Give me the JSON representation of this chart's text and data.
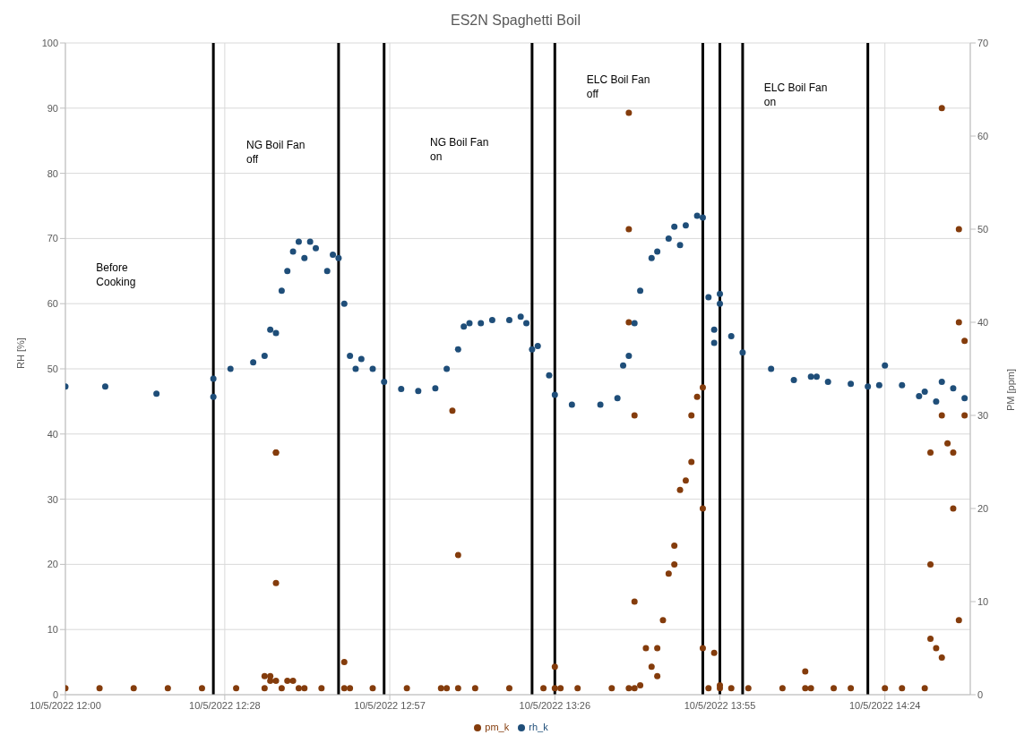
{
  "chart_data": {
    "type": "scatter",
    "title": "ES2N Spaghetti Boil",
    "ylabel": "RH [%]",
    "y2label": "PM [ppm]",
    "xlim": [
      "2022-10-05T12:00",
      "2022-10-05T14:39"
    ],
    "xticks": [
      {
        "value": "2022-10-05T12:00",
        "label": "10/5/2022 12:00"
      },
      {
        "value": "2022-10-05T12:28",
        "label": "10/5/2022 12:28"
      },
      {
        "value": "2022-10-05T12:57",
        "label": "10/5/2022 12:57"
      },
      {
        "value": "2022-10-05T13:26",
        "label": "10/5/2022 13:26"
      },
      {
        "value": "2022-10-05T13:55",
        "label": "10/5/2022 13:55"
      },
      {
        "value": "2022-10-05T14:24",
        "label": "10/5/2022 14:24"
      }
    ],
    "ylim": [
      0,
      100
    ],
    "yticks": [
      0,
      10,
      20,
      30,
      40,
      50,
      60,
      70,
      80,
      90,
      100
    ],
    "y2lim": [
      0,
      70
    ],
    "y2ticks": [
      0,
      10,
      20,
      30,
      40,
      50,
      60,
      70
    ],
    "grid": true,
    "legend": "bottom",
    "marker": "circle",
    "series": [
      {
        "name": "pm_k",
        "color": "#843c0c",
        "axis": "y2",
        "x": [
          "2022-10-05T12:00",
          "2022-10-05T12:06",
          "2022-10-05T12:12",
          "2022-10-05T12:18",
          "2022-10-05T12:24",
          "2022-10-05T12:30",
          "2022-10-05T12:35",
          "2022-10-05T12:35",
          "2022-10-05T12:36",
          "2022-10-05T12:36",
          "2022-10-05T12:37",
          "2022-10-05T12:37",
          "2022-10-05T12:37",
          "2022-10-05T12:37",
          "2022-10-05T12:38",
          "2022-10-05T12:39",
          "2022-10-05T12:40",
          "2022-10-05T12:41",
          "2022-10-05T12:42",
          "2022-10-05T12:45",
          "2022-10-05T12:49",
          "2022-10-05T12:49",
          "2022-10-05T12:50",
          "2022-10-05T12:54",
          "2022-10-05T13:00",
          "2022-10-05T13:06",
          "2022-10-05T13:07",
          "2022-10-05T13:08",
          "2022-10-05T13:09",
          "2022-10-05T13:09",
          "2022-10-05T13:12",
          "2022-10-05T13:18",
          "2022-10-05T13:24",
          "2022-10-05T13:26",
          "2022-10-05T13:26",
          "2022-10-05T13:27",
          "2022-10-05T13:30",
          "2022-10-05T13:36",
          "2022-10-05T13:39",
          "2022-10-05T13:39",
          "2022-10-05T13:39",
          "2022-10-05T13:39",
          "2022-10-05T13:40",
          "2022-10-05T13:40",
          "2022-10-05T13:40",
          "2022-10-05T13:41",
          "2022-10-05T13:42",
          "2022-10-05T13:43",
          "2022-10-05T13:44",
          "2022-10-05T13:44",
          "2022-10-05T13:45",
          "2022-10-05T13:46",
          "2022-10-05T13:47",
          "2022-10-05T13:47",
          "2022-10-05T13:48",
          "2022-10-05T13:49",
          "2022-10-05T13:50",
          "2022-10-05T13:50",
          "2022-10-05T13:51",
          "2022-10-05T13:52",
          "2022-10-05T13:52",
          "2022-10-05T13:52",
          "2022-10-05T13:53",
          "2022-10-05T13:54",
          "2022-10-05T13:55",
          "2022-10-05T13:55",
          "2022-10-05T13:57",
          "2022-10-05T14:00",
          "2022-10-05T14:06",
          "2022-10-05T14:10",
          "2022-10-05T14:10",
          "2022-10-05T14:11",
          "2022-10-05T14:15",
          "2022-10-05T14:18",
          "2022-10-05T14:24",
          "2022-10-05T14:27",
          "2022-10-05T14:31",
          "2022-10-05T14:32",
          "2022-10-05T14:32",
          "2022-10-05T14:32",
          "2022-10-05T14:33",
          "2022-10-05T14:34",
          "2022-10-05T14:34",
          "2022-10-05T14:34",
          "2022-10-05T14:35",
          "2022-10-05T14:36",
          "2022-10-05T14:36",
          "2022-10-05T14:37",
          "2022-10-05T14:37",
          "2022-10-05T14:37",
          "2022-10-05T14:38",
          "2022-10-05T14:38"
        ],
        "values": [
          0.7,
          0.7,
          0.7,
          0.7,
          0.7,
          0.7,
          0.7,
          2,
          2,
          1.5,
          26,
          26,
          12,
          1.5,
          0.7,
          1.5,
          1.5,
          0.7,
          0.7,
          0.7,
          0.7,
          3.5,
          0.7,
          0.7,
          0.7,
          0.7,
          0.7,
          30.5,
          15,
          0.7,
          0.7,
          0.7,
          0.7,
          0.7,
          3,
          0.7,
          0.7,
          0.7,
          0.7,
          40,
          62.5,
          50,
          30,
          10,
          0.7,
          1,
          5,
          3,
          2,
          5,
          8,
          13,
          16,
          14,
          22,
          23,
          25,
          30,
          32,
          33,
          20,
          5,
          0.7,
          4.5,
          1,
          0.7,
          0.7,
          0.7,
          0.7,
          0.7,
          2.5,
          0.7,
          0.7,
          0.7,
          0.7,
          0.7,
          0.7,
          6,
          26,
          14,
          5,
          4,
          63,
          30,
          27,
          20,
          26,
          50,
          40,
          8,
          30,
          38
        ]
      },
      {
        "name": "rh_k",
        "color": "#1f4e79",
        "x": [
          "2022-10-05T12:00",
          "2022-10-05T12:07",
          "2022-10-05T12:16",
          "2022-10-05T12:26",
          "2022-10-05T12:26",
          "2022-10-05T12:29",
          "2022-10-05T12:33",
          "2022-10-05T12:35",
          "2022-10-05T12:36",
          "2022-10-05T12:37",
          "2022-10-05T12:38",
          "2022-10-05T12:39",
          "2022-10-05T12:40",
          "2022-10-05T12:41",
          "2022-10-05T12:42",
          "2022-10-05T12:43",
          "2022-10-05T12:44",
          "2022-10-05T12:46",
          "2022-10-05T12:47",
          "2022-10-05T12:48",
          "2022-10-05T12:49",
          "2022-10-05T12:50",
          "2022-10-05T12:51",
          "2022-10-05T12:52",
          "2022-10-05T12:54",
          "2022-10-05T12:56",
          "2022-10-05T12:59",
          "2022-10-05T13:02",
          "2022-10-05T13:05",
          "2022-10-05T13:07",
          "2022-10-05T13:09",
          "2022-10-05T13:10",
          "2022-10-05T13:11",
          "2022-10-05T13:13",
          "2022-10-05T13:15",
          "2022-10-05T13:18",
          "2022-10-05T13:20",
          "2022-10-05T13:21",
          "2022-10-05T13:22",
          "2022-10-05T13:23",
          "2022-10-05T13:25",
          "2022-10-05T13:26",
          "2022-10-05T13:29",
          "2022-10-05T13:34",
          "2022-10-05T13:37",
          "2022-10-05T13:38",
          "2022-10-05T13:39",
          "2022-10-05T13:40",
          "2022-10-05T13:41",
          "2022-10-05T13:43",
          "2022-10-05T13:44",
          "2022-10-05T13:46",
          "2022-10-05T13:47",
          "2022-10-05T13:48",
          "2022-10-05T13:49",
          "2022-10-05T13:51",
          "2022-10-05T13:52",
          "2022-10-05T13:53",
          "2022-10-05T13:54",
          "2022-10-05T13:54",
          "2022-10-05T13:55",
          "2022-10-05T13:55",
          "2022-10-05T13:57",
          "2022-10-05T13:59",
          "2022-10-05T14:04",
          "2022-10-05T14:08",
          "2022-10-05T14:11",
          "2022-10-05T14:12",
          "2022-10-05T14:14",
          "2022-10-05T14:18",
          "2022-10-05T14:21",
          "2022-10-05T14:23",
          "2022-10-05T14:24",
          "2022-10-05T14:27",
          "2022-10-05T14:30",
          "2022-10-05T14:31",
          "2022-10-05T14:33",
          "2022-10-05T14:34",
          "2022-10-05T14:36",
          "2022-10-05T14:38"
        ],
        "values": [
          47.3,
          47.3,
          46.2,
          45.7,
          48.5,
          50,
          51,
          52,
          56,
          55.5,
          62,
          65,
          68,
          69.5,
          67,
          69.5,
          68.5,
          65,
          67.5,
          67,
          60,
          52,
          50,
          51.5,
          50,
          48,
          46.9,
          46.6,
          47,
          50,
          53,
          56.5,
          57,
          57,
          57.5,
          57.5,
          58,
          57,
          53,
          53.5,
          49,
          46,
          44.5,
          44.5,
          45.5,
          50.5,
          52,
          57,
          62,
          67,
          68,
          70,
          71.8,
          69,
          72,
          73.5,
          73.2,
          61,
          54,
          56,
          61.5,
          60,
          55,
          52.5,
          50,
          48.3,
          48.8,
          48.8,
          48,
          47.7,
          47.3,
          47.5,
          50.5,
          47.5,
          45.8,
          46.5,
          45,
          48,
          47,
          45.5
        ]
      }
    ],
    "ref_lines": [
      {
        "axis": "x",
        "value": "2022-10-05T12:26",
        "color": "#000000"
      },
      {
        "axis": "x",
        "value": "2022-10-05T12:48",
        "color": "#000000"
      },
      {
        "axis": "x",
        "value": "2022-10-05T12:56",
        "color": "#000000"
      },
      {
        "axis": "x",
        "value": "2022-10-05T13:22",
        "color": "#000000"
      },
      {
        "axis": "x",
        "value": "2022-10-05T13:26",
        "color": "#000000"
      },
      {
        "axis": "x",
        "value": "2022-10-05T13:52",
        "color": "#000000"
      },
      {
        "axis": "x",
        "value": "2022-10-05T13:55",
        "color": "#000000"
      },
      {
        "axis": "x",
        "value": "2022-10-05T13:59",
        "color": "#000000"
      },
      {
        "axis": "x",
        "value": "2022-10-05T14:21",
        "color": "#000000"
      }
    ],
    "annotations": [
      "Before Cooking",
      "NG Boil Fan off",
      "NG Boil Fan on",
      "ELC Boil Fan off",
      "ELC Boil Fan on"
    ]
  }
}
